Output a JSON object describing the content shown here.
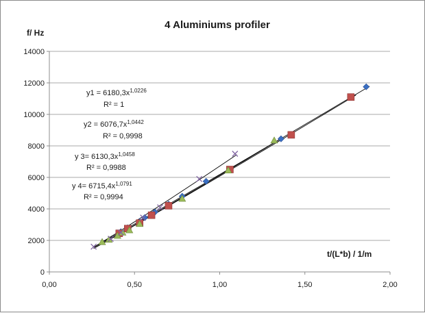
{
  "chart_data": {
    "type": "scatter",
    "title": "4 Aluminiums profiler",
    "ylabel": "f/ Hz",
    "xlabel": "t/(L*b) / 1/m",
    "xlim": [
      0,
      2
    ],
    "ylim": [
      0,
      14000
    ],
    "x_ticks": [
      "0,00",
      "0,50",
      "1,00",
      "1,50",
      "2,00"
    ],
    "y_ticks": [
      "0",
      "2000",
      "4000",
      "6000",
      "8000",
      "10000",
      "12000",
      "14000"
    ],
    "grid": "horizontal",
    "legend": "none",
    "series": [
      {
        "marker": "diamond",
        "color": "#3a6fc4",
        "points": [
          [
            0.42,
            2550
          ],
          [
            0.46,
            2800
          ],
          [
            0.53,
            3200
          ],
          [
            0.56,
            3450
          ],
          [
            0.62,
            3800
          ],
          [
            0.7,
            4300
          ],
          [
            0.78,
            4800
          ],
          [
            0.92,
            5750
          ],
          [
            1.36,
            8450
          ],
          [
            1.86,
            11750
          ]
        ],
        "fit": {
          "a": 6180.3,
          "b": 1.0226,
          "from": 0.26,
          "to": 1.88
        },
        "equation": {
          "y": "y1 = 6180,3x",
          "exp": "1,0226",
          "r2": "R² = 1"
        }
      },
      {
        "marker": "square",
        "color": "#c0504d",
        "points": [
          [
            0.41,
            2450
          ],
          [
            0.46,
            2750
          ],
          [
            0.53,
            3100
          ],
          [
            0.6,
            3600
          ],
          [
            0.7,
            4200
          ],
          [
            1.06,
            6500
          ],
          [
            1.42,
            8700
          ],
          [
            1.77,
            11100
          ]
        ],
        "fit": {
          "a": 6076.7,
          "b": 1.0442,
          "from": 0.26,
          "to": 1.8
        },
        "equation": {
          "y": "y2 = 6076,7x",
          "exp": "1,0442",
          "r2": "R² = 0,9998"
        }
      },
      {
        "marker": "triangle",
        "color": "#9bbb59",
        "points": [
          [
            0.31,
            1900
          ],
          [
            0.35,
            2050
          ],
          [
            0.4,
            2300
          ],
          [
            0.43,
            2500
          ],
          [
            0.47,
            2650
          ],
          [
            0.53,
            3050
          ],
          [
            0.78,
            4650
          ],
          [
            1.05,
            6450
          ],
          [
            1.32,
            8350
          ]
        ],
        "fit": {
          "a": 6130.3,
          "b": 1.0458,
          "from": 0.26,
          "to": 1.35
        },
        "equation": {
          "y": "y 3= 6130,3x",
          "exp": "1,0458",
          "r2": "R² = 0,9988"
        }
      },
      {
        "marker": "x",
        "color": "#8064a2",
        "points": [
          [
            0.26,
            1600
          ],
          [
            0.36,
            2100
          ],
          [
            0.42,
            2500
          ],
          [
            0.55,
            3450
          ],
          [
            0.65,
            4100
          ],
          [
            0.88,
            5900
          ],
          [
            1.09,
            7500
          ]
        ],
        "fit": {
          "a": 6715.4,
          "b": 1.0791,
          "from": 0.26,
          "to": 1.1
        },
        "equation": {
          "y": "y 4= 6715,4x",
          "exp": "1,0791",
          "r2": "R² = 0,9994"
        }
      }
    ]
  }
}
